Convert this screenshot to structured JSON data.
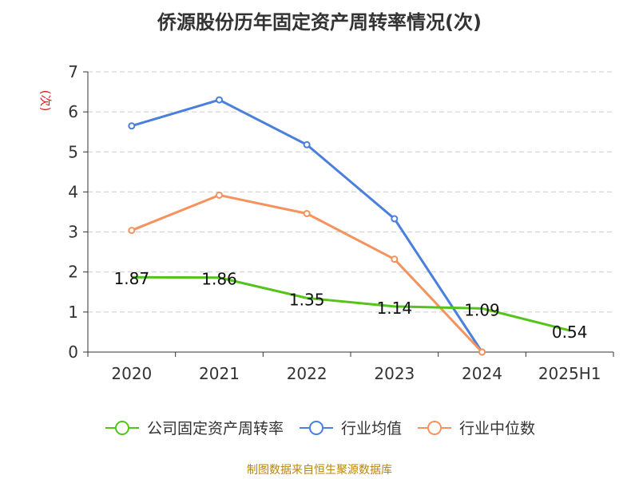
{
  "title": "侨源股份历年固定资产周转率情况(次)",
  "source": "制图数据来自恒生聚源数据库",
  "chart_data": {
    "type": "line",
    "ylabel": "(次)",
    "ylim": [
      0,
      7
    ],
    "yticks": [
      "0",
      "1",
      "2",
      "3",
      "4",
      "5",
      "6",
      "7"
    ],
    "categories": [
      "2020",
      "2021",
      "2022",
      "2023",
      "2024",
      "2025H1"
    ],
    "grid": true,
    "legend_position": "bottom",
    "series": [
      {
        "name": "公司固定资产周转率",
        "color": "#52c41a",
        "values": [
          1.87,
          1.86,
          1.35,
          1.14,
          1.09,
          0.54
        ],
        "labels": [
          "1.87",
          "1.86",
          "1.35",
          "1.14",
          "1.09",
          "0.54"
        ]
      },
      {
        "name": "行业均值",
        "color": "#4a7fdc",
        "values": [
          5.65,
          6.3,
          5.18,
          3.33,
          0,
          null
        ]
      },
      {
        "name": "行业中位数",
        "color": "#f5925e",
        "values": [
          3.04,
          3.92,
          3.46,
          2.32,
          0,
          null
        ]
      }
    ]
  }
}
